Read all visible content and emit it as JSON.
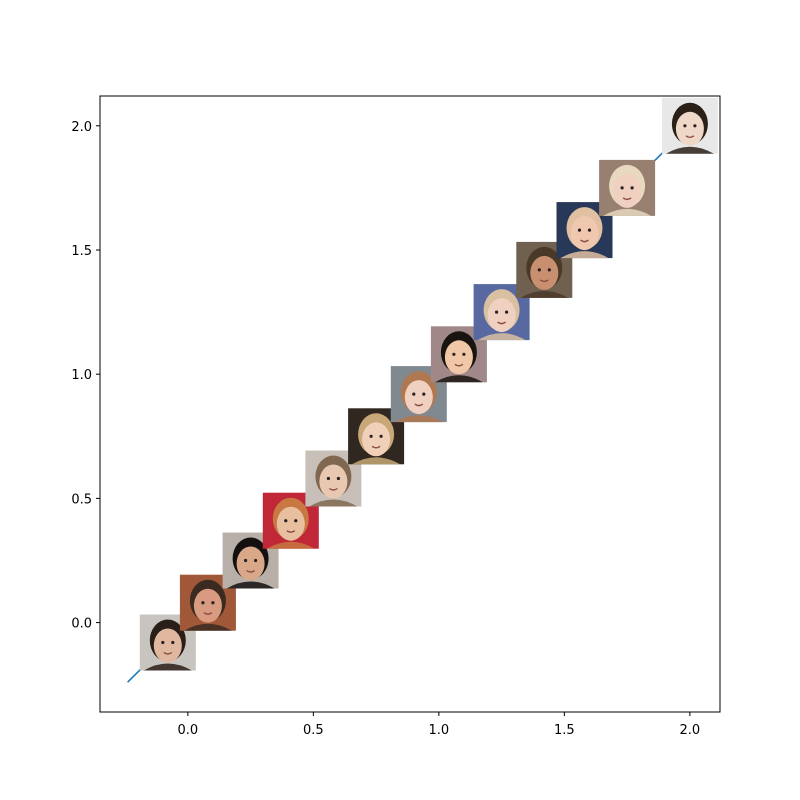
{
  "chart_data": {
    "type": "line",
    "title": "",
    "xlabel": "",
    "ylabel": "",
    "xlim": [
      -0.35,
      2.12
    ],
    "ylim": [
      -0.36,
      2.12
    ],
    "x_ticks": [
      0.0,
      0.5,
      1.0,
      1.5,
      2.0
    ],
    "y_ticks": [
      0.0,
      0.5,
      1.0,
      1.5,
      2.0
    ],
    "x_tick_labels": [
      "0.0",
      "0.5",
      "1.0",
      "1.5",
      "2.0"
    ],
    "y_tick_labels": [
      "0.0",
      "0.5",
      "1.0",
      "1.5",
      "2.0"
    ],
    "grid": false,
    "legend": "none",
    "line_color": "#1f77b4",
    "series": [
      {
        "x": [
          -0.24,
          2.02
        ],
        "y": [
          -0.24,
          2.02
        ]
      }
    ],
    "image_markers": [
      {
        "x": -0.08,
        "y": -0.08,
        "skin": "#e0b8a0",
        "hair": "#2a1e18",
        "bg": "#c8c4c0"
      },
      {
        "x": 0.08,
        "y": 0.08,
        "skin": "#d89a80",
        "hair": "#3a2a20",
        "bg": "#a05838"
      },
      {
        "x": 0.25,
        "y": 0.25,
        "skin": "#d8a888",
        "hair": "#141010",
        "bg": "#b8b0a8"
      },
      {
        "x": 0.41,
        "y": 0.41,
        "skin": "#e8c0a0",
        "hair": "#c87840",
        "bg": "#c02838"
      },
      {
        "x": 0.58,
        "y": 0.58,
        "skin": "#e8c8b0",
        "hair": "#806850",
        "bg": "#c8c0b8"
      },
      {
        "x": 0.75,
        "y": 0.75,
        "skin": "#f0d0b8",
        "hair": "#c8a878",
        "bg": "#302820"
      },
      {
        "x": 0.92,
        "y": 0.92,
        "skin": "#f0d0c0",
        "hair": "#b07850",
        "bg": "#808890"
      },
      {
        "x": 1.08,
        "y": 1.08,
        "skin": "#f0c8a8",
        "hair": "#1a1410",
        "bg": "#a08888"
      },
      {
        "x": 1.25,
        "y": 1.25,
        "skin": "#f0d0c0",
        "hair": "#d8c0a0",
        "bg": "#5868a0"
      },
      {
        "x": 1.42,
        "y": 1.42,
        "skin": "#c89070",
        "hair": "#4a3828",
        "bg": "#706050"
      },
      {
        "x": 1.58,
        "y": 1.58,
        "skin": "#f0c8b0",
        "hair": "#e0c0a0",
        "bg": "#283858"
      },
      {
        "x": 1.75,
        "y": 1.75,
        "skin": "#f0d0c0",
        "hair": "#e8d8c0",
        "bg": "#988070"
      },
      {
        "x": 2.0,
        "y": 2.0,
        "skin": "#f0d8c8",
        "hair": "#2a2018",
        "bg": "#e8e8e8"
      }
    ]
  }
}
